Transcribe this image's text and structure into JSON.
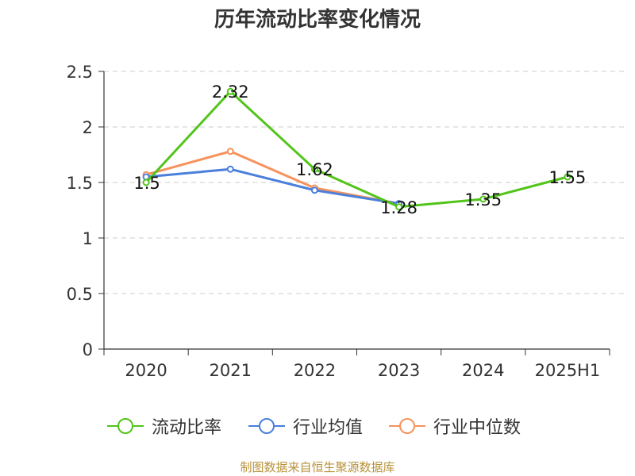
{
  "title": "历年流动比率变化情况",
  "source": "制图数据来自恒生聚源数据库",
  "chart_data": {
    "type": "line",
    "categories": [
      "2020",
      "2021",
      "2022",
      "2023",
      "2024",
      "2025H1"
    ],
    "ylim": [
      0,
      2.5
    ],
    "yticks": [
      "0",
      "0.5",
      "1",
      "1.5",
      "2",
      "2.5"
    ],
    "grid": true,
    "legend_position": "bottom",
    "series": [
      {
        "name": "流动比率",
        "color": "#52c41a",
        "values": [
          1.5,
          2.32,
          1.62,
          1.28,
          1.35,
          1.55
        ],
        "labels": [
          "1.5",
          "2.32",
          "1.62",
          "1.28",
          "1.35",
          "1.55"
        ]
      },
      {
        "name": "行业均值",
        "color": "#4a7fdb",
        "values": [
          1.55,
          1.62,
          1.43,
          1.31,
          null,
          null
        ]
      },
      {
        "name": "行业中位数",
        "color": "#f7925c",
        "values": [
          1.57,
          1.78,
          1.45,
          1.31,
          null,
          null
        ]
      }
    ]
  }
}
